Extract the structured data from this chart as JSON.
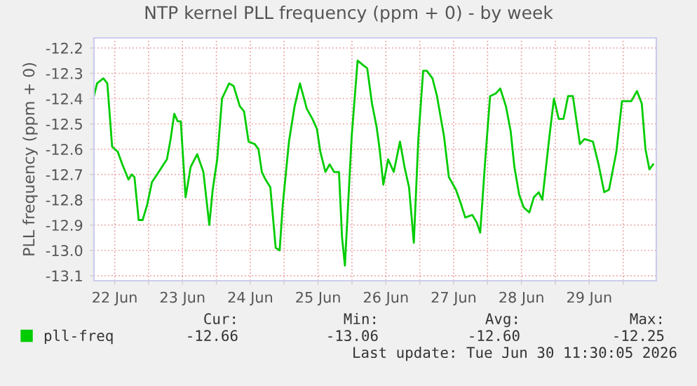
{
  "chart_data": {
    "type": "line",
    "title": "NTP kernel PLL frequency (ppm + 0) - by week",
    "ylabel": "PLL frequency (ppm + 0)",
    "x": [
      "2026-06-22T04:40",
      "2026-06-22T05:45",
      "2026-06-22T08:00",
      "2026-06-22T09:24",
      "2026-06-22T11:06",
      "2026-06-22T13:06",
      "2026-06-22T14:42",
      "2026-06-22T16:54",
      "2026-06-22T18:00",
      "2026-06-22T19:00",
      "2026-06-22T20:30",
      "2026-06-22T21:54",
      "2026-06-22T23:30",
      "2026-06-23T01:12",
      "2026-06-23T03:36",
      "2026-06-23T05:18",
      "2026-06-23T06:30",
      "2026-06-23T07:48",
      "2026-06-23T09:06",
      "2026-06-23T10:18",
      "2026-06-23T11:24",
      "2026-06-23T13:06",
      "2026-06-23T14:54",
      "2026-06-23T17:12",
      "2026-06-23T19:24",
      "2026-06-23T21:30",
      "2026-06-23T22:42",
      "2026-06-24T00:18",
      "2026-06-24T02:00",
      "2026-06-24T04:30",
      "2026-06-24T06:06",
      "2026-06-24T08:18",
      "2026-06-24T09:48",
      "2026-06-24T11:24",
      "2026-06-24T13:36",
      "2026-06-24T14:54",
      "2026-06-24T16:06",
      "2026-06-24T17:24",
      "2026-06-24T19:06",
      "2026-06-24T21:00",
      "2026-06-24T22:24",
      "2026-06-24T23:30",
      "2026-06-25T01:42",
      "2026-06-25T03:42",
      "2026-06-25T05:36",
      "2026-06-25T08:00",
      "2026-06-25T10:00",
      "2026-06-25T11:36",
      "2026-06-25T12:48",
      "2026-06-25T14:36",
      "2026-06-25T16:06",
      "2026-06-25T17:42",
      "2026-06-25T19:24",
      "2026-06-25T20:30",
      "2026-06-25T21:30",
      "2026-06-25T23:54",
      "2026-06-26T02:00",
      "2026-06-26T04:12",
      "2026-06-26T05:24",
      "2026-06-26T07:06",
      "2026-06-26T08:42",
      "2026-06-26T09:48",
      "2026-06-26T11:06",
      "2026-06-26T12:48",
      "2026-06-26T14:48",
      "2026-06-26T17:00",
      "2026-06-26T18:36",
      "2026-06-26T20:12",
      "2026-06-26T21:54",
      "2026-06-26T23:30",
      "2026-06-27T01:12",
      "2026-06-27T02:30",
      "2026-06-27T04:30",
      "2026-06-27T06:06",
      "2026-06-27T08:36",
      "2026-06-27T10:18",
      "2026-06-27T12:48",
      "2026-06-27T14:24",
      "2026-06-27T16:06",
      "2026-06-27T18:36",
      "2026-06-27T20:12",
      "2026-06-27T21:24",
      "2026-06-27T23:12",
      "2026-06-28T00:54",
      "2026-06-28T02:54",
      "2026-06-28T04:30",
      "2026-06-28T06:30",
      "2026-06-28T08:12",
      "2026-06-28T09:30",
      "2026-06-28T11:12",
      "2026-06-28T12:48",
      "2026-06-28T14:48",
      "2026-06-28T16:24",
      "2026-06-28T18:06",
      "2026-06-28T19:24",
      "2026-06-28T21:54",
      "2026-06-28T23:30",
      "2026-06-29T01:12",
      "2026-06-29T02:54",
      "2026-06-29T04:30",
      "2026-06-29T06:12",
      "2026-06-29T08:42",
      "2026-06-29T10:18",
      "2026-06-29T13:18",
      "2026-06-29T15:18",
      "2026-06-29T17:18",
      "2026-06-29T19:00",
      "2026-06-29T21:36",
      "2026-06-29T23:36",
      "2026-06-30T02:54",
      "2026-06-30T04:54",
      "2026-06-30T06:36",
      "2026-06-30T07:54",
      "2026-06-30T09:18",
      "2026-06-30T10:36"
    ],
    "series": [
      {
        "name": "pll-freq",
        "color": "#00cc00",
        "values": [
          -12.39,
          -12.34,
          -12.32,
          -12.34,
          -12.59,
          -12.61,
          -12.66,
          -12.72,
          -12.7,
          -12.71,
          -12.88,
          -12.88,
          -12.82,
          -12.73,
          -12.69,
          -12.66,
          -12.64,
          -12.56,
          -12.46,
          -12.49,
          -12.49,
          -12.79,
          -12.67,
          -12.62,
          -12.69,
          -12.9,
          -12.76,
          -12.64,
          -12.4,
          -12.34,
          -12.35,
          -12.43,
          -12.45,
          -12.57,
          -12.58,
          -12.6,
          -12.69,
          -12.72,
          -12.75,
          -12.99,
          -13.0,
          -12.82,
          -12.57,
          -12.43,
          -12.34,
          -12.44,
          -12.48,
          -12.52,
          -12.61,
          -12.69,
          -12.66,
          -12.69,
          -12.69,
          -12.95,
          -13.06,
          -12.55,
          -12.25,
          -12.27,
          -12.28,
          -12.42,
          -12.51,
          -12.6,
          -12.74,
          -12.64,
          -12.69,
          -12.57,
          -12.67,
          -12.75,
          -12.97,
          -12.56,
          -12.29,
          -12.29,
          -12.32,
          -12.39,
          -12.55,
          -12.71,
          -12.76,
          -12.81,
          -12.87,
          -12.86,
          -12.89,
          -12.93,
          -12.64,
          -12.39,
          -12.38,
          -12.36,
          -12.43,
          -12.53,
          -12.67,
          -12.78,
          -12.83,
          -12.85,
          -12.79,
          -12.77,
          -12.8,
          -12.55,
          -12.4,
          -12.48,
          -12.48,
          -12.39,
          -12.39,
          -12.58,
          -12.56,
          -12.57,
          -12.66,
          -12.77,
          -12.76,
          -12.61,
          -12.41,
          -12.41,
          -12.37,
          -12.42,
          -12.6,
          -12.68,
          -12.66
        ]
      }
    ],
    "xlim": [
      "2026-06-22T04:40",
      "2026-06-30T11:45"
    ],
    "xticks": [
      {
        "value": "2026-06-22T12:00",
        "label": "22 Jun"
      },
      {
        "value": "2026-06-23T00:00",
        "label": null
      },
      {
        "value": "2026-06-23T12:00",
        "label": "23 Jun"
      },
      {
        "value": "2026-06-24T00:00",
        "label": null
      },
      {
        "value": "2026-06-24T12:00",
        "label": "24 Jun"
      },
      {
        "value": "2026-06-25T00:00",
        "label": null
      },
      {
        "value": "2026-06-25T12:00",
        "label": "25 Jun"
      },
      {
        "value": "2026-06-26T00:00",
        "label": null
      },
      {
        "value": "2026-06-26T12:00",
        "label": "26 Jun"
      },
      {
        "value": "2026-06-27T00:00",
        "label": null
      },
      {
        "value": "2026-06-27T12:00",
        "label": "27 Jun"
      },
      {
        "value": "2026-06-28T00:00",
        "label": null
      },
      {
        "value": "2026-06-28T12:00",
        "label": "28 Jun"
      },
      {
        "value": "2026-06-29T00:00",
        "label": null
      },
      {
        "value": "2026-06-29T12:00",
        "label": "29 Jun"
      },
      {
        "value": "2026-06-30T00:00",
        "label": null
      }
    ],
    "ylim": [
      -13.12,
      -12.16
    ],
    "yticks": [
      -13.1,
      {
        "value": -13.0,
        "label": "-13.0"
      },
      -12.9,
      -12.8,
      -12.7,
      -12.6,
      -12.5,
      -12.4,
      -12.3,
      -12.2
    ],
    "grid": true,
    "legend": "bottom",
    "annotations": [
      "Cur:",
      "Min:",
      "Avg:",
      "Max:",
      "-12.66",
      "-13.06",
      "-12.60",
      "-12.25",
      "Last update: Tue Jun 30 11:30:05 2026"
    ]
  }
}
